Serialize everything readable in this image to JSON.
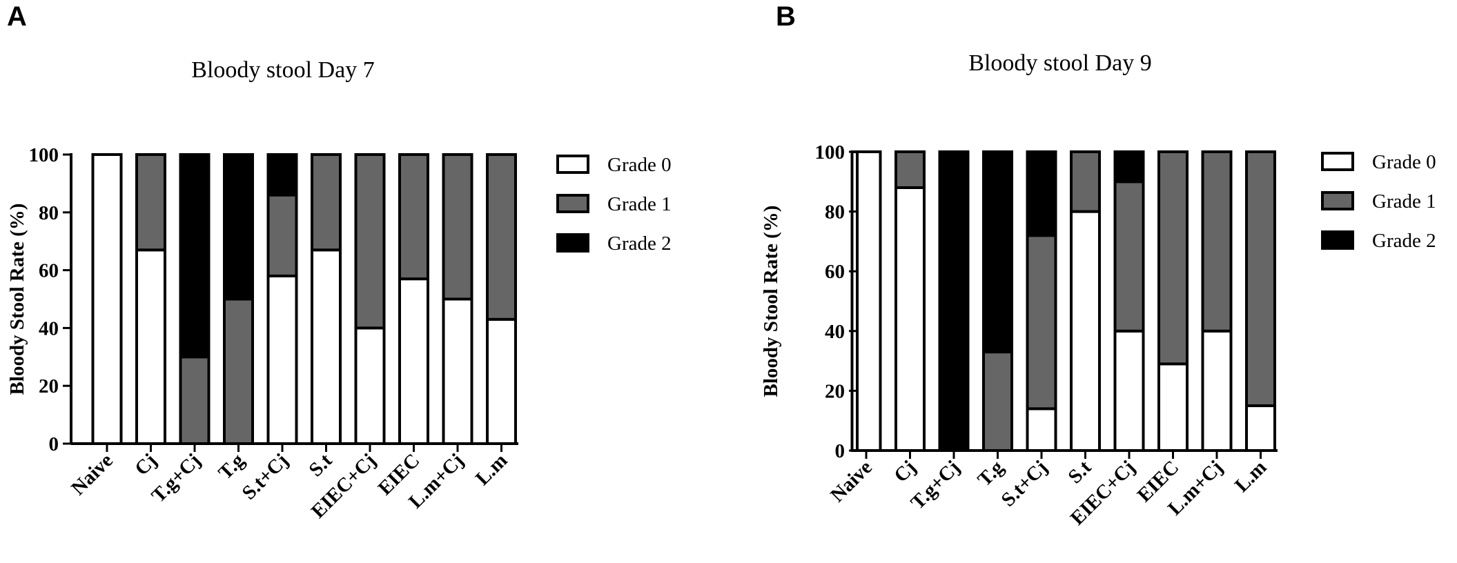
{
  "panels": [
    {
      "letter": "A"
    },
    {
      "letter": "B"
    }
  ],
  "colors": {
    "grade_0": "#ffffff",
    "grade_1": "#666666",
    "grade_2": "#000000",
    "stroke": "#000000"
  },
  "chart_data": [
    {
      "type": "bar",
      "stacked": true,
      "title": "Bloody stool Day 7",
      "ylabel": "Bloody Stool Rate (%)",
      "xlabel": "",
      "ylim": [
        0,
        100
      ],
      "yticks": [
        0,
        20,
        40,
        60,
        80,
        100
      ],
      "categories": [
        "Naive",
        "Cj",
        "T.g+Cj",
        "T.g",
        "S.t+Cj",
        "S.t",
        "EIEC+Cj",
        "EIEC",
        "L.m+Cj",
        "L.m"
      ],
      "series": [
        {
          "name": "Grade 0",
          "values": [
            100,
            67,
            0,
            0,
            58,
            67,
            40,
            57,
            50,
            43
          ]
        },
        {
          "name": "Grade 1",
          "values": [
            0,
            33,
            30,
            50,
            28,
            33,
            60,
            43,
            50,
            57
          ]
        },
        {
          "name": "Grade 2",
          "values": [
            0,
            0,
            70,
            50,
            14,
            0,
            0,
            0,
            0,
            0
          ]
        }
      ],
      "legend_position": "right"
    },
    {
      "type": "bar",
      "stacked": true,
      "title": "Bloody stool Day 9",
      "ylabel": "Bloody Stool Rate (%)",
      "xlabel": "",
      "ylim": [
        0,
        100
      ],
      "yticks": [
        0,
        20,
        40,
        60,
        80,
        100
      ],
      "categories": [
        "Naive",
        "Cj",
        "T.g+Cj",
        "T.g",
        "S.t+Cj",
        "S.t",
        "EIEC+Cj",
        "EIEC",
        "L.m+Cj",
        "L.m"
      ],
      "series": [
        {
          "name": "Grade 0",
          "values": [
            100,
            88,
            0,
            0,
            14,
            80,
            40,
            29,
            40,
            15
          ]
        },
        {
          "name": "Grade 1",
          "values": [
            0,
            12,
            0,
            33,
            58,
            20,
            50,
            71,
            60,
            85
          ]
        },
        {
          "name": "Grade 2",
          "values": [
            0,
            0,
            100,
            67,
            28,
            0,
            10,
            0,
            0,
            0
          ]
        }
      ],
      "legend_position": "right"
    }
  ]
}
